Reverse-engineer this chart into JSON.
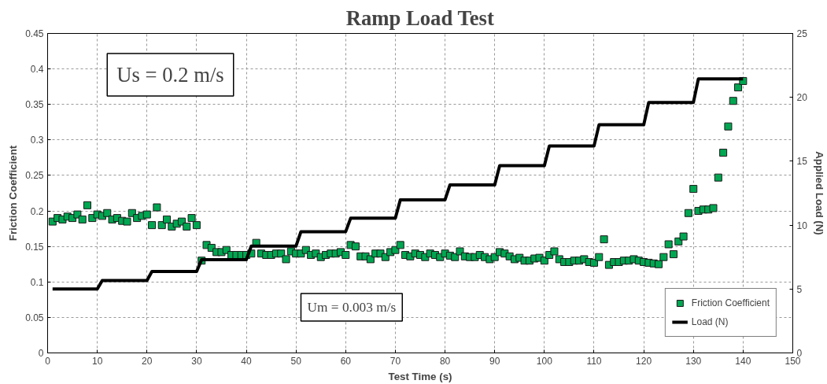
{
  "chart_data": {
    "type": "scatter",
    "title": "Ramp Load Test",
    "xlabel": "Test Time (s)",
    "ylabel": "Friction Coefficient",
    "y2label": "Applied Load (N)",
    "annotations": [
      "Us = 0.2 m/s",
      "Um = 0.003 m/s"
    ],
    "xlim": [
      0,
      150
    ],
    "xticks": [
      0,
      10,
      20,
      30,
      40,
      50,
      60,
      70,
      80,
      90,
      100,
      110,
      120,
      130,
      140,
      150
    ],
    "ylim": [
      0,
      0.45
    ],
    "yticks": [
      0,
      0.05,
      0.1,
      0.15,
      0.2,
      0.25,
      0.3,
      0.35,
      0.4,
      0.45
    ],
    "y2lim": [
      0,
      25
    ],
    "y2ticks": [
      0,
      5,
      10,
      15,
      20,
      25
    ],
    "grid": true,
    "legend": "bottom right",
    "series": [
      {
        "name": "Friction Coefficient",
        "marker": "square",
        "color": "#00a651",
        "x": [
          1,
          2,
          3,
          4,
          5,
          6,
          7,
          8,
          9,
          10,
          11,
          12,
          13,
          14,
          15,
          16,
          17,
          18,
          19,
          20,
          21,
          22,
          23,
          24,
          25,
          26,
          27,
          28,
          29,
          30,
          31,
          32,
          33,
          34,
          35,
          36,
          37,
          38,
          39,
          40,
          41,
          42,
          43,
          44,
          45,
          46,
          47,
          48,
          49,
          50,
          51,
          52,
          53,
          54,
          55,
          56,
          57,
          58,
          59,
          60,
          61,
          62,
          63,
          64,
          65,
          66,
          67,
          68,
          69,
          70,
          71,
          72,
          73,
          74,
          75,
          76,
          77,
          78,
          79,
          80,
          81,
          82,
          83,
          84,
          85,
          86,
          87,
          88,
          89,
          90,
          91,
          92,
          93,
          94,
          95,
          96,
          97,
          98,
          99,
          100,
          101,
          102,
          103,
          104,
          105,
          106,
          107,
          108,
          109,
          110,
          111,
          112,
          113,
          114,
          115,
          116,
          117,
          118,
          119,
          120,
          121,
          122,
          123,
          124,
          125,
          126,
          127,
          128,
          129,
          130,
          131,
          132,
          133,
          134,
          135,
          136,
          137,
          138,
          139,
          140
        ],
        "values": [
          0.185,
          0.19,
          0.188,
          0.192,
          0.19,
          0.195,
          0.188,
          0.208,
          0.19,
          0.195,
          0.193,
          0.197,
          0.188,
          0.19,
          0.186,
          0.185,
          0.197,
          0.19,
          0.193,
          0.195,
          0.18,
          0.205,
          0.18,
          0.188,
          0.178,
          0.182,
          0.185,
          0.178,
          0.19,
          0.18,
          0.13,
          0.152,
          0.148,
          0.142,
          0.142,
          0.145,
          0.138,
          0.138,
          0.138,
          0.138,
          0.14,
          0.155,
          0.14,
          0.138,
          0.138,
          0.14,
          0.14,
          0.132,
          0.143,
          0.14,
          0.14,
          0.145,
          0.138,
          0.14,
          0.135,
          0.138,
          0.14,
          0.14,
          0.142,
          0.138,
          0.152,
          0.15,
          0.136,
          0.136,
          0.132,
          0.14,
          0.14,
          0.135,
          0.142,
          0.145,
          0.152,
          0.138,
          0.136,
          0.14,
          0.138,
          0.135,
          0.14,
          0.138,
          0.135,
          0.14,
          0.137,
          0.135,
          0.143,
          0.136,
          0.135,
          0.135,
          0.138,
          0.135,
          0.132,
          0.135,
          0.142,
          0.14,
          0.136,
          0.132,
          0.134,
          0.13,
          0.13,
          0.133,
          0.134,
          0.13,
          0.138,
          0.143,
          0.132,
          0.128,
          0.128,
          0.13,
          0.13,
          0.132,
          0.128,
          0.127,
          0.135,
          0.16,
          0.124,
          0.128,
          0.128,
          0.13,
          0.13,
          0.132,
          0.13,
          0.128,
          0.127,
          0.126,
          0.125,
          0.135,
          0.153,
          0.139,
          0.157,
          0.164,
          0.197,
          0.231,
          0.2,
          0.202,
          0.202,
          0.204,
          0.247,
          0.282,
          0.319,
          0.355,
          0.374,
          0.383
        ]
      },
      {
        "name": "Load (N)",
        "type": "line",
        "axis": "y2",
        "color": "#000000",
        "line_style": "solid",
        "x": [
          1,
          10,
          11,
          20,
          21,
          30,
          31,
          40,
          41,
          50,
          51,
          60,
          61,
          70,
          71,
          80,
          81,
          90,
          91,
          100,
          101,
          110,
          111,
          120,
          121,
          130,
          131,
          140
        ],
        "values": [
          5,
          5,
          5.67,
          5.67,
          6.37,
          6.37,
          7.3,
          7.3,
          8.36,
          8.36,
          9.49,
          9.49,
          10.54,
          10.54,
          11.98,
          11.98,
          13.15,
          13.15,
          14.66,
          14.66,
          16.2,
          16.2,
          17.85,
          17.85,
          19.6,
          19.6,
          21.45,
          21.45
        ]
      }
    ]
  }
}
